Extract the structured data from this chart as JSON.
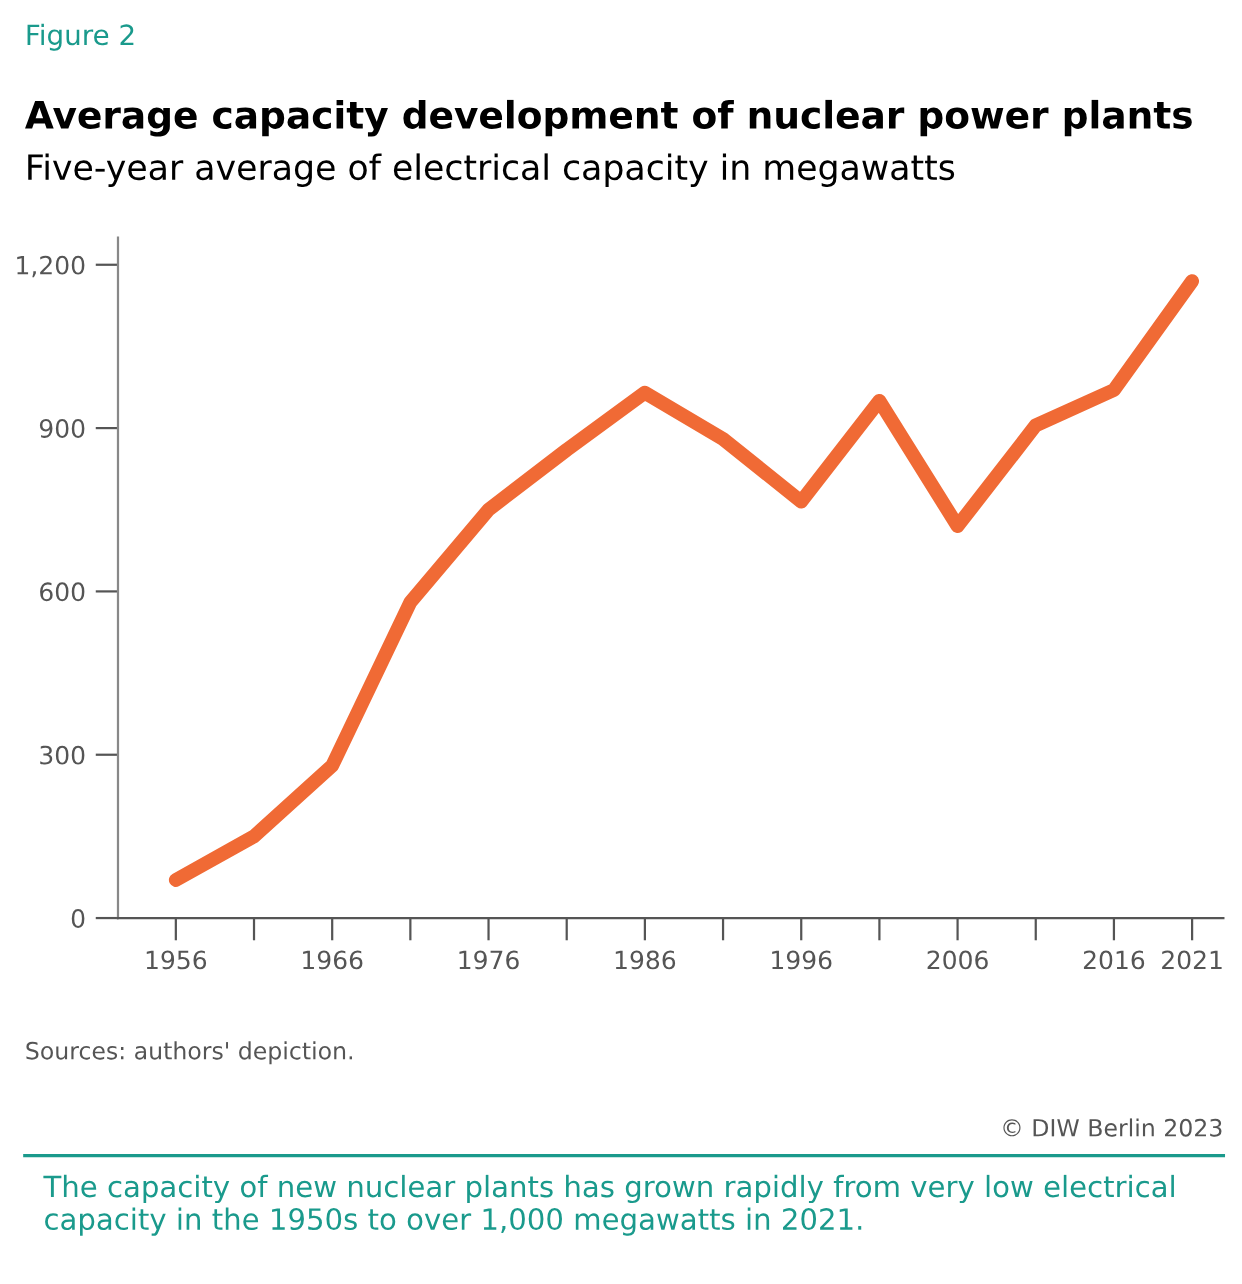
{
  "chart_data": {
    "type": "line",
    "title": "Average capacity development of nuclear power plants",
    "subtitle": "Five-year average of electrical capacity in megawatts",
    "x": [
      1956,
      1961,
      1966,
      1971,
      1976,
      1981,
      1986,
      1991,
      1996,
      2001,
      2006,
      2011,
      2016,
      2021
    ],
    "series": [
      {
        "color": "#f06a35",
        "values": [
          70,
          150,
          280,
          580,
          750,
          860,
          965,
          880,
          765,
          950,
          720,
          905,
          970,
          1170
        ]
      }
    ],
    "xlim": [
      1952.3,
      2023
    ],
    "xticks": [
      1956,
      {
        "value": 1961,
        "label": null
      },
      1966,
      {
        "value": 1971,
        "label": null
      },
      1976,
      {
        "value": 1981,
        "label": null
      },
      1986,
      {
        "value": 1991,
        "label": null
      },
      1996,
      {
        "value": 2001,
        "label": null
      },
      2006,
      {
        "value": 2011,
        "label": null
      },
      2016,
      2021
    ],
    "ylim": [
      0,
      1250
    ],
    "yticks": [
      0,
      300,
      600,
      900,
      {
        "value": 1200,
        "label": "1,200"
      }
    ],
    "grid": false,
    "legend": false,
    "marker": "none",
    "line_style": "solid",
    "annotations": [
      "Figure 2",
      "Sources: authors' depiction.",
      "© DIW Berlin 2023",
      "The capacity of new nuclear plants has grown rapidly from very low electrical capacity in the 1950s to over 1,000 megawatts in 2021."
    ]
  }
}
